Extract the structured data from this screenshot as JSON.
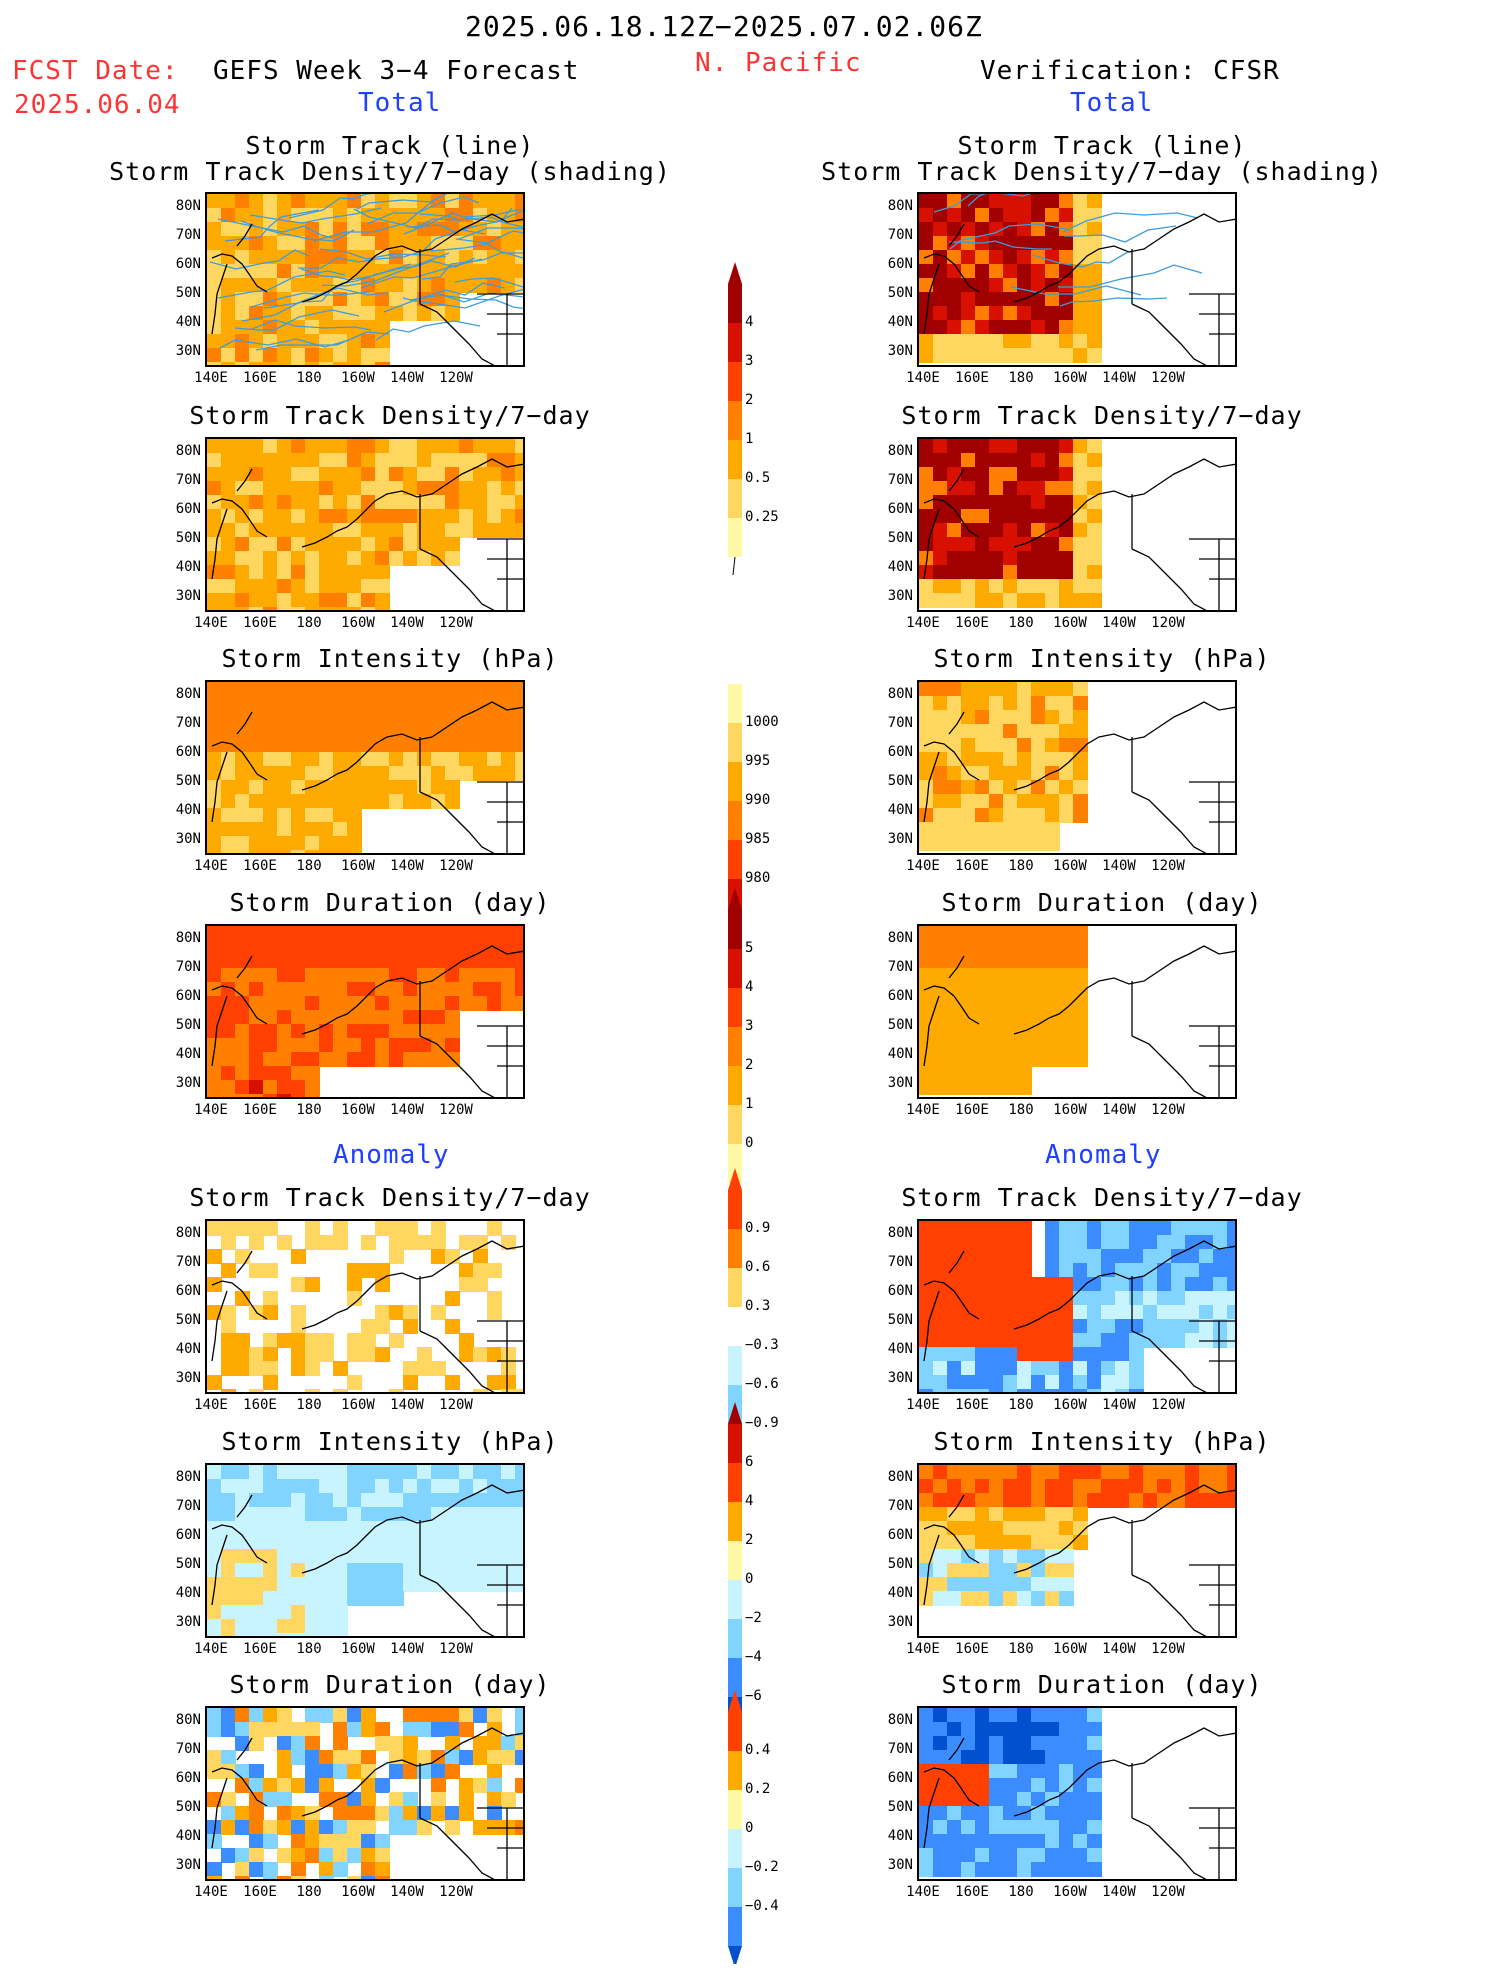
{
  "header": {
    "date_range": "2025.06.18.12Z−2025.07.02.06Z",
    "fcst_label": "FCST Date:",
    "fcst_date": "2025.06.04",
    "left_title": "GEFS Week 3−4 Forecast",
    "region": "N. Pacific",
    "right_title": "Verification: CFSR",
    "total_label_left": "Total",
    "total_label_right": "Total",
    "anomaly_label_left": "Anomaly",
    "anomaly_label_right": "Anomaly"
  },
  "panels": {
    "track_title_1": "Storm Track (line)",
    "track_title_2": "Storm Track Density/7−day (shading)",
    "density_title": "Storm Track Density/7−day",
    "intensity_title": "Storm Intensity (hPa)",
    "duration_title": "Storm Duration (day)"
  },
  "axes": {
    "lat_labels": [
      "80N",
      "70N",
      "60N",
      "50N",
      "40N",
      "30N"
    ],
    "lon_labels": [
      "140E",
      "160E",
      "180",
      "160W",
      "140W",
      "120W"
    ]
  },
  "colorbars": {
    "density_total": [
      "4",
      "3",
      "2",
      "1",
      "0.5",
      "0.25"
    ],
    "intensity_total": [
      "1000",
      "995",
      "990",
      "985",
      "980"
    ],
    "duration_total": [
      "5",
      "4",
      "3",
      "2",
      "1",
      "0"
    ],
    "density_anom": [
      "0.9",
      "0.6",
      "0.3",
      "−0.3",
      "−0.6",
      "−0.9"
    ],
    "intensity_anom": [
      "6",
      "4",
      "2",
      "0",
      "−2",
      "−4",
      "−6"
    ],
    "duration_anom": [
      "0.4",
      "0.2",
      "0",
      "−0.2",
      "−0.4"
    ]
  },
  "colors": {
    "warm": [
      "#fff8a6",
      "#ffd760",
      "#ffaa00",
      "#ff8000",
      "#ff4000",
      "#d81000",
      "#a00000"
    ],
    "cool": [
      "#c8f4ff",
      "#80d4ff",
      "#3a8cff",
      "#0050d0"
    ],
    "track_line": "#3c9cdc",
    "header_red": "#ff3333",
    "header_blue": "#2040ff"
  }
}
